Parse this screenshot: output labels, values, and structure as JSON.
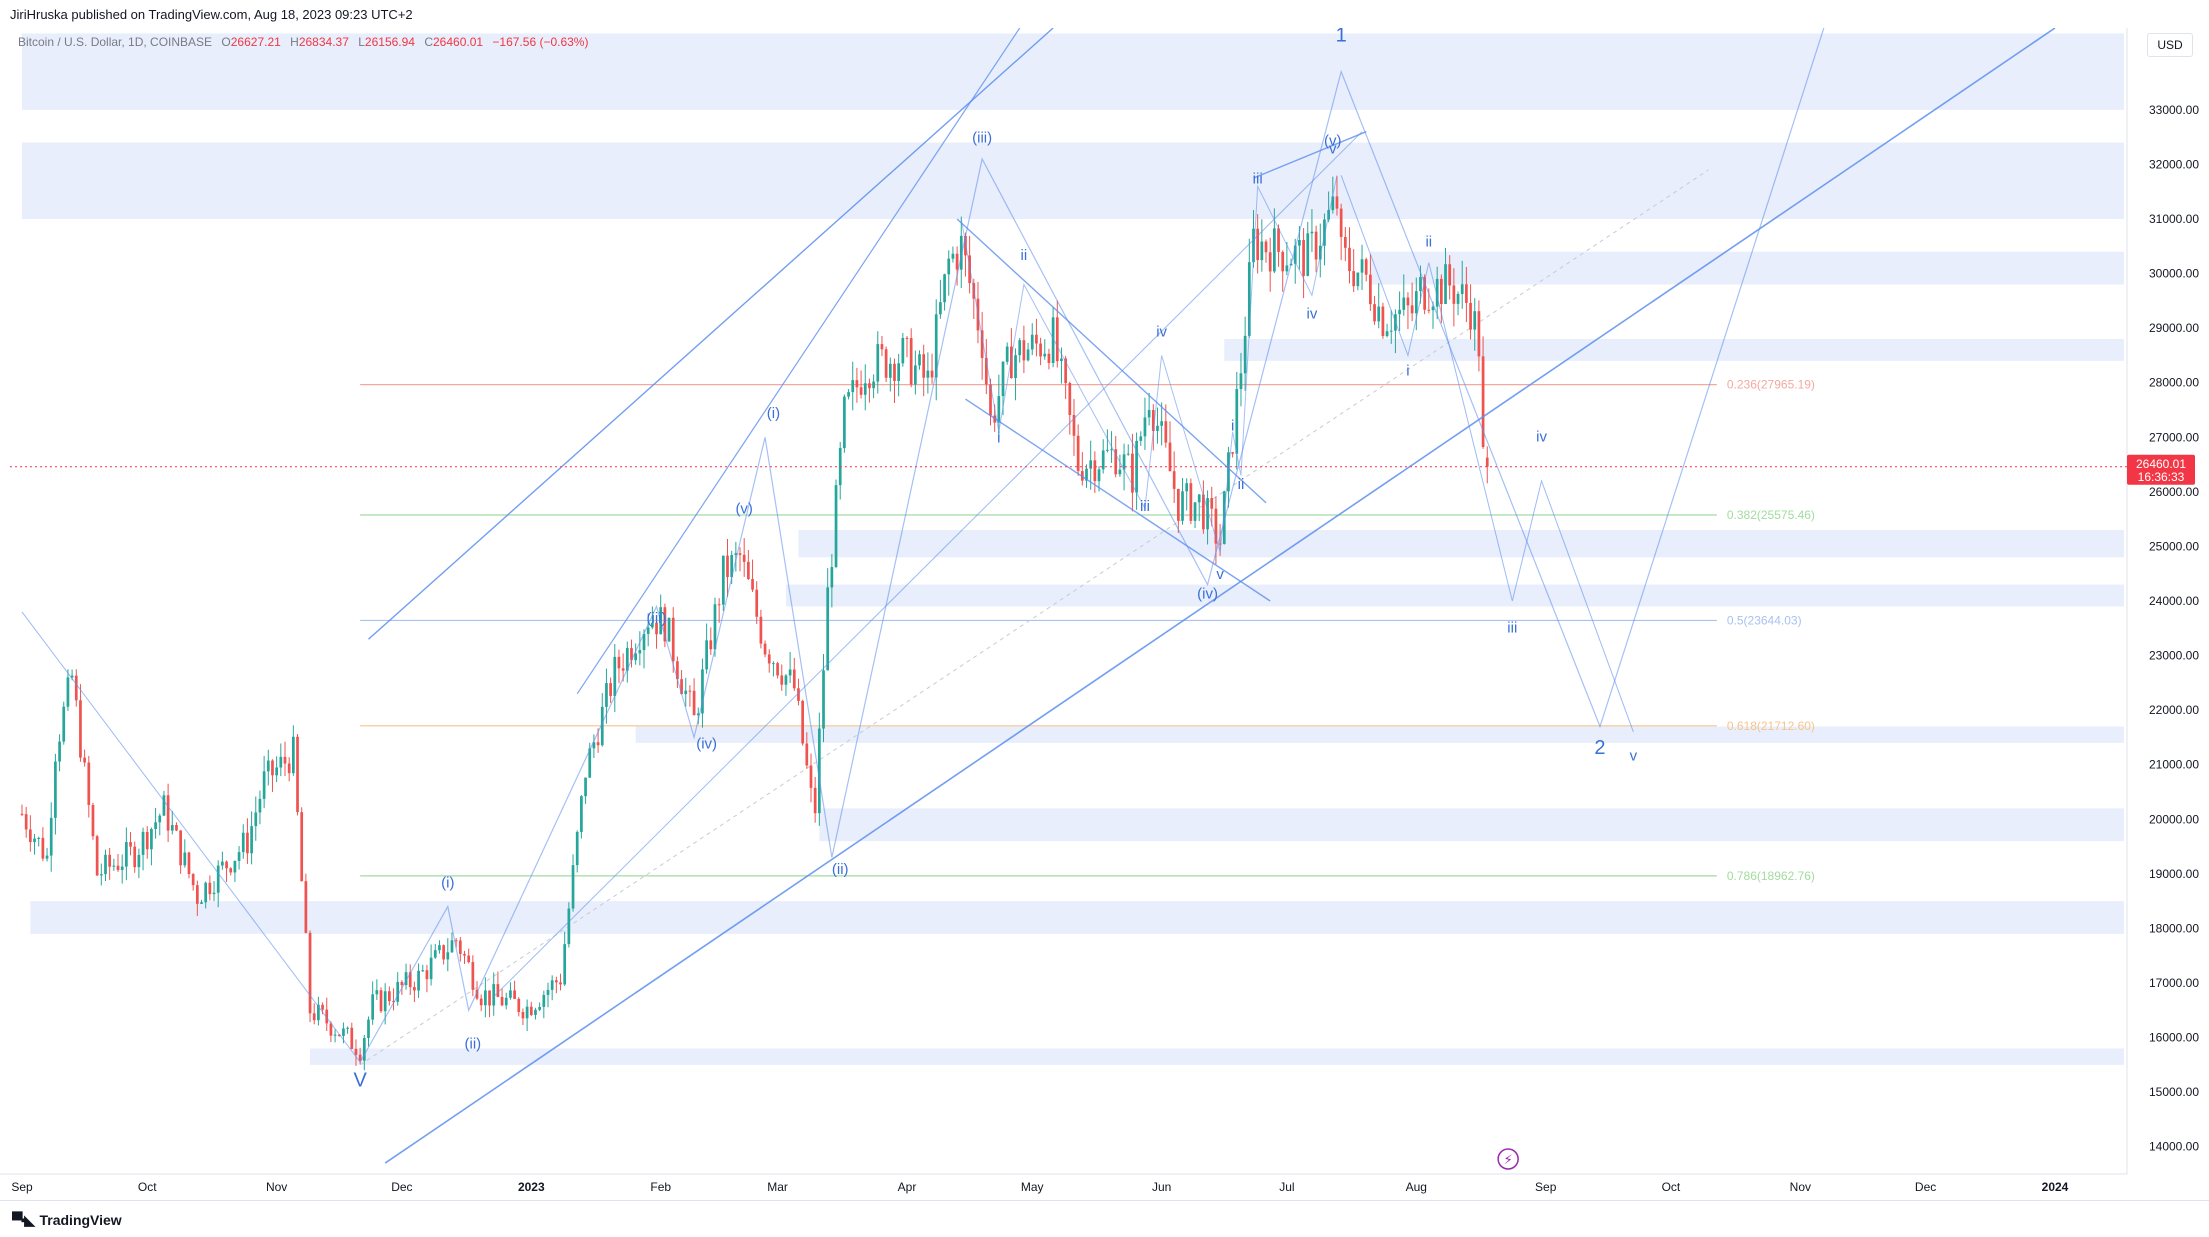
{
  "header": {
    "publish_text": "JiriHruska published on TradingView.com, Aug 18, 2023 09:23 UTC+2"
  },
  "symbol": {
    "name": "Bitcoin / U.S. Dollar, 1D, COINBASE",
    "open_label": "O",
    "open": "26627.21",
    "high_label": "H",
    "high": "26834.37",
    "low_label": "L",
    "low": "26156.94",
    "close_label": "C",
    "close": "26460.01",
    "change": "−167.56 (−0.63%)"
  },
  "currency": "USD",
  "price_tag": {
    "price": "26460.01",
    "countdown": "16:36:33"
  },
  "footer": {
    "brand": "TradingView"
  },
  "colors": {
    "up": "#26a69a",
    "down": "#ef5350",
    "wave": "#5b8def",
    "zone": "#e8eefb",
    "fib_236": "#f4a99f",
    "fib_382": "#a3dba0",
    "fib_5": "#a8c2f0",
    "fib_618": "#f6c48c",
    "fib_786": "#a3dba0",
    "last_price": "#f23645"
  },
  "chart_data": {
    "type": "candlestick",
    "timeframe": "1D",
    "ylim": [
      13500,
      34500
    ],
    "y_ticks": [
      "14000.00",
      "15000.00",
      "16000.00",
      "17000.00",
      "18000.00",
      "19000.00",
      "20000.00",
      "21000.00",
      "22000.00",
      "23000.00",
      "24000.00",
      "25000.00",
      "26000.00",
      "27000.00",
      "28000.00",
      "29000.00",
      "30000.00",
      "31000.00",
      "32000.00",
      "33000.00"
    ],
    "x_ticks": [
      {
        "label": "Sep",
        "x": "2022-09-01"
      },
      {
        "label": "Oct",
        "x": "2022-10-01"
      },
      {
        "label": "Nov",
        "x": "2022-11-01"
      },
      {
        "label": "Dec",
        "x": "2022-12-01"
      },
      {
        "label": "2023",
        "x": "2023-01-01",
        "bold": true
      },
      {
        "label": "Feb",
        "x": "2023-02-01"
      },
      {
        "label": "Mar",
        "x": "2023-03-01"
      },
      {
        "label": "Apr",
        "x": "2023-04-01"
      },
      {
        "label": "May",
        "x": "2023-05-01"
      },
      {
        "label": "Jun",
        "x": "2023-06-01"
      },
      {
        "label": "Jul",
        "x": "2023-07-01"
      },
      {
        "label": "Aug",
        "x": "2023-08-01"
      },
      {
        "label": "Sep",
        "x": "2023-09-01"
      },
      {
        "label": "Oct",
        "x": "2023-10-01"
      },
      {
        "label": "Nov",
        "x": "2023-11-01"
      },
      {
        "label": "Dec",
        "x": "2023-12-01"
      },
      {
        "label": "2024",
        "x": "2024-01-01",
        "bold": true
      }
    ],
    "last_price": 26460.01,
    "price_path": [
      [
        "2022-09-01",
        20100
      ],
      [
        "2022-09-07",
        19300
      ],
      [
        "2022-09-09",
        21300
      ],
      [
        "2022-09-13",
        22600
      ],
      [
        "2022-09-19",
        19000
      ],
      [
        "2022-09-28",
        19400
      ],
      [
        "2022-10-05",
        20200
      ],
      [
        "2022-10-13",
        18600
      ],
      [
        "2022-10-25",
        19600
      ],
      [
        "2022-10-29",
        20700
      ],
      [
        "2022-11-05",
        21200
      ],
      [
        "2022-11-09",
        16500
      ],
      [
        "2022-11-13",
        16300
      ],
      [
        "2022-11-21",
        15800
      ],
      [
        "2022-11-24",
        16600
      ],
      [
        "2022-12-05",
        17100
      ],
      [
        "2022-12-14",
        17800
      ],
      [
        "2022-12-20",
        16800
      ],
      [
        "2022-12-31",
        16550
      ],
      [
        "2023-01-08",
        17100
      ],
      [
        "2023-01-14",
        20900
      ],
      [
        "2023-01-21",
        22700
      ],
      [
        "2023-01-29",
        23700
      ],
      [
        "2023-02-02",
        23600
      ],
      [
        "2023-02-09",
        21800
      ],
      [
        "2023-02-16",
        24500
      ],
      [
        "2023-02-20",
        24800
      ],
      [
        "2023-02-26",
        23200
      ],
      [
        "2023-03-05",
        22400
      ],
      [
        "2023-03-09",
        20400
      ],
      [
        "2023-03-10",
        20200
      ],
      [
        "2023-03-13",
        24100
      ],
      [
        "2023-03-17",
        27400
      ],
      [
        "2023-03-22",
        28300
      ],
      [
        "2023-03-31",
        28500
      ],
      [
        "2023-04-06",
        28000
      ],
      [
        "2023-04-11",
        30200
      ],
      [
        "2023-04-14",
        30500
      ],
      [
        "2023-04-19",
        28800
      ],
      [
        "2023-04-21",
        27300
      ],
      [
        "2023-04-26",
        28500
      ],
      [
        "2023-05-06",
        28800
      ],
      [
        "2023-05-12",
        26500
      ],
      [
        "2023-05-21",
        26700
      ],
      [
        "2023-05-25",
        26300
      ],
      [
        "2023-05-29",
        27800
      ],
      [
        "2023-06-05",
        25800
      ],
      [
        "2023-06-10",
        25800
      ],
      [
        "2023-06-15",
        25100
      ],
      [
        "2023-06-20",
        28300
      ],
      [
        "2023-06-23",
        30600
      ],
      [
        "2023-06-30",
        30400
      ],
      [
        "2023-07-06",
        30300
      ],
      [
        "2023-07-13",
        31300
      ],
      [
        "2023-07-14",
        30300
      ],
      [
        "2023-07-20",
        29900
      ],
      [
        "2023-07-24",
        29200
      ],
      [
        "2023-07-31",
        29300
      ],
      [
        "2023-08-02",
        29700
      ],
      [
        "2023-08-09",
        29800
      ],
      [
        "2023-08-14",
        29400
      ],
      [
        "2023-08-16",
        28700
      ],
      [
        "2023-08-17",
        26600
      ],
      [
        "2023-08-18",
        26460
      ]
    ],
    "fib_levels": [
      {
        "ratio": "0.236",
        "price": 27965.19,
        "label": "0.236(27965.19)"
      },
      {
        "ratio": "0.382",
        "price": 25575.46,
        "label": "0.382(25575.46)"
      },
      {
        "ratio": "0.5",
        "price": 23644.03,
        "label": "0.5(23644.03)"
      },
      {
        "ratio": "0.618",
        "price": 21712.6,
        "label": "0.618(21712.60)"
      },
      {
        "ratio": "0.786",
        "price": 18962.76,
        "label": "0.786(18962.76)"
      }
    ],
    "fib_range": {
      "from": "2022-11-21",
      "to": "2023-10-12"
    },
    "zones": [
      {
        "from": 33000,
        "to": 34400,
        "start": "2022-09-01"
      },
      {
        "from": 31000,
        "to": 32400,
        "start": "2022-09-01"
      },
      {
        "from": 29800,
        "to": 30400,
        "start": "2023-07-21"
      },
      {
        "from": 28400,
        "to": 28800,
        "start": "2023-06-16"
      },
      {
        "from": 24800,
        "to": 25300,
        "start": "2023-03-06"
      },
      {
        "from": 23900,
        "to": 24300,
        "start": "2023-03-03"
      },
      {
        "from": 21400,
        "to": 21700,
        "start": "2023-01-26"
      },
      {
        "from": 19600,
        "to": 20200,
        "start": "2023-03-11"
      },
      {
        "from": 17900,
        "to": 18500,
        "start": "2022-09-03"
      },
      {
        "from": 15500,
        "to": 15800,
        "start": "2022-11-09"
      }
    ],
    "wave_labels": [
      {
        "text": "1",
        "x": "2023-07-14",
        "y": 34250,
        "size": "large"
      },
      {
        "text": "2",
        "x": "2023-09-14",
        "y": 21200,
        "size": "large"
      },
      {
        "text": "V",
        "x": "2022-11-21",
        "y": 15100,
        "size": "large"
      },
      {
        "text": "(i)",
        "x": "2022-12-12",
        "y": 18750
      },
      {
        "text": "(ii)",
        "x": "2022-12-18",
        "y": 15800
      },
      {
        "text": "(iii)",
        "x": "2023-01-31",
        "y": 23600
      },
      {
        "text": "(iv)",
        "x": "2023-02-12",
        "y": 21300
      },
      {
        "text": "(v)",
        "x": "2023-02-21",
        "y": 25600
      },
      {
        "text": "(i)",
        "x": "2023-02-28",
        "y": 27350
      },
      {
        "text": "(ii)",
        "x": "2023-03-16",
        "y": 19000
      },
      {
        "text": "(iii)",
        "x": "2023-04-19",
        "y": 32400
      },
      {
        "text": "(iv)",
        "x": "2023-06-12",
        "y": 24050
      },
      {
        "text": "(v)",
        "x": "2023-07-12",
        "y": 32350
      },
      {
        "text": "i",
        "x": "2023-04-23",
        "y": 26900
      },
      {
        "text": "ii",
        "x": "2023-04-29",
        "y": 30250
      },
      {
        "text": "iii",
        "x": "2023-05-28",
        "y": 25650
      },
      {
        "text": "iv",
        "x": "2023-06-01",
        "y": 28850
      },
      {
        "text": "v",
        "x": "2023-06-15",
        "y": 24400
      },
      {
        "text": "i",
        "x": "2023-06-18",
        "y": 27120
      },
      {
        "text": "ii",
        "x": "2023-06-20",
        "y": 26050
      },
      {
        "text": "iii",
        "x": "2023-06-24",
        "y": 31650
      },
      {
        "text": "iv",
        "x": "2023-07-07",
        "y": 29180
      },
      {
        "text": "v",
        "x": "2023-07-12",
        "y": 32200
      },
      {
        "text": "i",
        "x": "2023-07-30",
        "y": 28130
      },
      {
        "text": "ii",
        "x": "2023-08-04",
        "y": 30500
      },
      {
        "text": "iii",
        "x": "2023-08-24",
        "y": 23420
      },
      {
        "text": "iv",
        "x": "2023-08-31",
        "y": 26920
      },
      {
        "text": "v",
        "x": "2023-09-22",
        "y": 21080
      }
    ]
  }
}
